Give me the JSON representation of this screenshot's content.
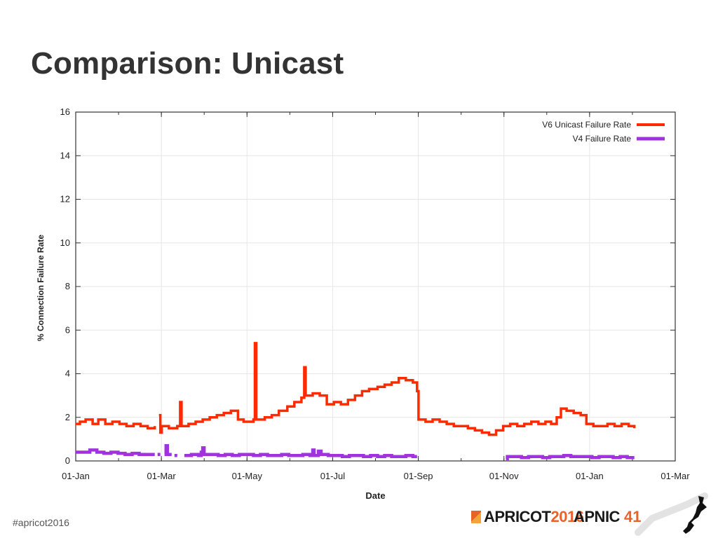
{
  "slide": {
    "title": "Comparison: Unicast",
    "footer_tag": "#apricot2016"
  },
  "logos": {
    "apricot_word": "APRICOT",
    "apricot_year": "2016",
    "apnic_word": "APNIC",
    "apnic_number": "41"
  },
  "colors": {
    "v6": "#ff2a00",
    "v4": "#a033dd",
    "grid": "#e6e6e6",
    "accent": "#e8622a"
  },
  "chart_data": {
    "type": "line",
    "title": "",
    "xlabel": "Date",
    "ylabel": "% Connection Failure Rate",
    "ylim": [
      0,
      16
    ],
    "xlim": [
      "2015-01-01",
      "2016-03-01"
    ],
    "grid": true,
    "legend_position": "top-right",
    "x_ticks": [
      "01-Jan",
      "01-Mar",
      "01-May",
      "01-Jul",
      "01-Sep",
      "01-Nov",
      "01-Jan",
      "01-Mar"
    ],
    "y_ticks": [
      "0",
      "2",
      "4",
      "6",
      "8",
      "10",
      "12",
      "14",
      "16"
    ],
    "series": [
      {
        "name": "V6 Unicast Failure Rate",
        "color": "#ff2a00",
        "segments": [
          [
            [
              "2015-01-01",
              1.7
            ],
            [
              "2015-01-04",
              1.8
            ],
            [
              "2015-01-08",
              1.9
            ],
            [
              "2015-01-13",
              1.7
            ],
            [
              "2015-01-17",
              1.9
            ],
            [
              "2015-01-22",
              1.7
            ],
            [
              "2015-01-27",
              1.8
            ],
            [
              "2015-02-01",
              1.7
            ],
            [
              "2015-02-06",
              1.6
            ],
            [
              "2015-02-11",
              1.7
            ],
            [
              "2015-02-16",
              1.6
            ],
            [
              "2015-02-21",
              1.5
            ],
            [
              "2015-02-26",
              1.6
            ]
          ],
          [
            [
              "2015-03-01",
              2.1
            ],
            [
              "2015-03-02",
              1.3
            ],
            [
              "2015-03-03",
              1.6
            ],
            [
              "2015-03-08",
              1.5
            ],
            [
              "2015-03-14",
              1.6
            ],
            [
              "2015-03-16",
              2.7
            ],
            [
              "2015-03-17",
              1.6
            ],
            [
              "2015-03-22",
              1.7
            ],
            [
              "2015-03-27",
              1.8
            ],
            [
              "2015-04-01",
              1.9
            ],
            [
              "2015-04-06",
              2.0
            ],
            [
              "2015-04-11",
              2.1
            ],
            [
              "2015-04-16",
              2.2
            ],
            [
              "2015-04-21",
              2.3
            ],
            [
              "2015-04-26",
              1.9
            ],
            [
              "2015-04-30",
              1.8
            ],
            [
              "2015-05-07",
              1.9
            ],
            [
              "2015-05-08",
              5.4
            ],
            [
              "2015-05-09",
              1.9
            ],
            [
              "2015-05-15",
              2.0
            ],
            [
              "2015-05-20",
              2.1
            ],
            [
              "2015-05-25",
              2.3
            ],
            [
              "2015-05-31",
              2.5
            ],
            [
              "2015-06-05",
              2.7
            ],
            [
              "2015-06-10",
              2.9
            ],
            [
              "2015-06-12",
              4.3
            ],
            [
              "2015-06-13",
              3.0
            ],
            [
              "2015-06-18",
              3.1
            ],
            [
              "2015-06-23",
              3.0
            ],
            [
              "2015-06-28",
              2.6
            ],
            [
              "2015-07-03",
              2.7
            ],
            [
              "2015-07-08",
              2.6
            ],
            [
              "2015-07-13",
              2.8
            ],
            [
              "2015-07-18",
              3.0
            ],
            [
              "2015-07-23",
              3.2
            ],
            [
              "2015-07-28",
              3.3
            ],
            [
              "2015-08-03",
              3.4
            ],
            [
              "2015-08-08",
              3.5
            ],
            [
              "2015-08-13",
              3.6
            ],
            [
              "2015-08-18",
              3.8
            ],
            [
              "2015-08-23",
              3.7
            ],
            [
              "2015-08-28",
              3.6
            ],
            [
              "2015-08-31",
              3.2
            ],
            [
              "2015-09-01",
              1.9
            ],
            [
              "2015-09-06",
              1.8
            ],
            [
              "2015-09-11",
              1.9
            ],
            [
              "2015-09-16",
              1.8
            ],
            [
              "2015-09-21",
              1.7
            ],
            [
              "2015-09-26",
              1.6
            ],
            [
              "2015-10-01",
              1.6
            ],
            [
              "2015-10-06",
              1.5
            ],
            [
              "2015-10-11",
              1.4
            ],
            [
              "2015-10-16",
              1.3
            ],
            [
              "2015-10-21",
              1.2
            ],
            [
              "2015-10-26",
              1.4
            ],
            [
              "2015-10-31",
              1.6
            ],
            [
              "2015-11-05",
              1.7
            ],
            [
              "2015-11-10",
              1.6
            ],
            [
              "2015-11-15",
              1.7
            ],
            [
              "2015-11-20",
              1.8
            ],
            [
              "2015-11-25",
              1.7
            ],
            [
              "2015-11-30",
              1.8
            ],
            [
              "2015-12-04",
              1.7
            ],
            [
              "2015-12-08",
              2.0
            ],
            [
              "2015-12-11",
              2.4
            ],
            [
              "2015-12-15",
              2.3
            ],
            [
              "2015-12-20",
              2.2
            ],
            [
              "2015-12-25",
              2.1
            ],
            [
              "2015-12-29",
              1.7
            ],
            [
              "2016-01-03",
              1.6
            ],
            [
              "2016-01-08",
              1.6
            ],
            [
              "2016-01-13",
              1.7
            ],
            [
              "2016-01-18",
              1.6
            ],
            [
              "2016-01-23",
              1.7
            ],
            [
              "2016-01-28",
              1.6
            ],
            [
              "2016-02-01",
              1.5
            ]
          ]
        ]
      },
      {
        "name": "V4 Failure Rate",
        "color": "#a033dd",
        "segments": [
          [
            [
              "2015-01-01",
              0.4
            ],
            [
              "2015-01-06",
              0.4
            ],
            [
              "2015-01-11",
              0.5
            ],
            [
              "2015-01-16",
              0.4
            ],
            [
              "2015-01-21",
              0.35
            ],
            [
              "2015-01-26",
              0.4
            ],
            [
              "2015-01-31",
              0.35
            ],
            [
              "2015-02-05",
              0.3
            ],
            [
              "2015-02-10",
              0.35
            ],
            [
              "2015-02-15",
              0.3
            ],
            [
              "2015-02-20",
              0.3
            ],
            [
              "2015-02-26",
              0.3
            ]
          ],
          [
            [
              "2015-02-28",
              0.3
            ],
            [
              "2015-03-02",
              0.3
            ]
          ],
          [
            [
              "2015-03-05",
              0.3
            ],
            [
              "2015-03-06",
              0.7
            ],
            [
              "2015-03-07",
              0.3
            ],
            [
              "2015-03-10",
              0.3
            ]
          ],
          [
            [
              "2015-03-12",
              0.25
            ],
            [
              "2015-03-14",
              0.25
            ]
          ],
          [
            [
              "2015-03-19",
              0.25
            ],
            [
              "2015-03-24",
              0.3
            ],
            [
              "2015-03-29",
              0.25
            ],
            [
              "2015-03-31",
              0.4
            ],
            [
              "2015-04-01",
              0.6
            ],
            [
              "2015-04-02",
              0.3
            ],
            [
              "2015-04-07",
              0.3
            ],
            [
              "2015-04-12",
              0.25
            ],
            [
              "2015-04-17",
              0.3
            ],
            [
              "2015-04-22",
              0.25
            ],
            [
              "2015-04-27",
              0.3
            ],
            [
              "2015-05-02",
              0.3
            ],
            [
              "2015-05-07",
              0.25
            ],
            [
              "2015-05-12",
              0.3
            ],
            [
              "2015-05-17",
              0.25
            ],
            [
              "2015-05-22",
              0.25
            ],
            [
              "2015-05-27",
              0.3
            ],
            [
              "2015-06-01",
              0.25
            ],
            [
              "2015-06-06",
              0.25
            ],
            [
              "2015-06-11",
              0.3
            ],
            [
              "2015-06-16",
              0.25
            ],
            [
              "2015-06-18",
              0.5
            ],
            [
              "2015-06-19",
              0.25
            ],
            [
              "2015-06-22",
              0.45
            ],
            [
              "2015-06-24",
              0.3
            ],
            [
              "2015-06-29",
              0.25
            ],
            [
              "2015-07-04",
              0.25
            ],
            [
              "2015-07-09",
              0.2
            ],
            [
              "2015-07-14",
              0.25
            ],
            [
              "2015-07-19",
              0.25
            ],
            [
              "2015-07-24",
              0.2
            ],
            [
              "2015-07-29",
              0.25
            ],
            [
              "2015-08-03",
              0.2
            ],
            [
              "2015-08-08",
              0.25
            ],
            [
              "2015-08-13",
              0.2
            ],
            [
              "2015-08-18",
              0.2
            ],
            [
              "2015-08-23",
              0.25
            ],
            [
              "2015-08-28",
              0.2
            ],
            [
              "2015-08-31",
              0.2
            ]
          ],
          [
            [
              "2015-11-02",
              0.1
            ],
            [
              "2015-11-03",
              0.2
            ],
            [
              "2015-11-08",
              0.2
            ],
            [
              "2015-11-13",
              0.15
            ],
            [
              "2015-11-18",
              0.2
            ],
            [
              "2015-11-23",
              0.2
            ],
            [
              "2015-11-28",
              0.15
            ],
            [
              "2015-12-03",
              0.2
            ],
            [
              "2015-12-08",
              0.2
            ],
            [
              "2015-12-13",
              0.25
            ],
            [
              "2015-12-18",
              0.2
            ],
            [
              "2015-12-23",
              0.2
            ],
            [
              "2015-12-28",
              0.2
            ],
            [
              "2016-01-02",
              0.15
            ],
            [
              "2016-01-07",
              0.2
            ],
            [
              "2016-01-12",
              0.2
            ],
            [
              "2016-01-17",
              0.15
            ],
            [
              "2016-01-22",
              0.2
            ],
            [
              "2016-01-27",
              0.15
            ],
            [
              "2016-02-01",
              0.15
            ]
          ]
        ]
      }
    ]
  }
}
